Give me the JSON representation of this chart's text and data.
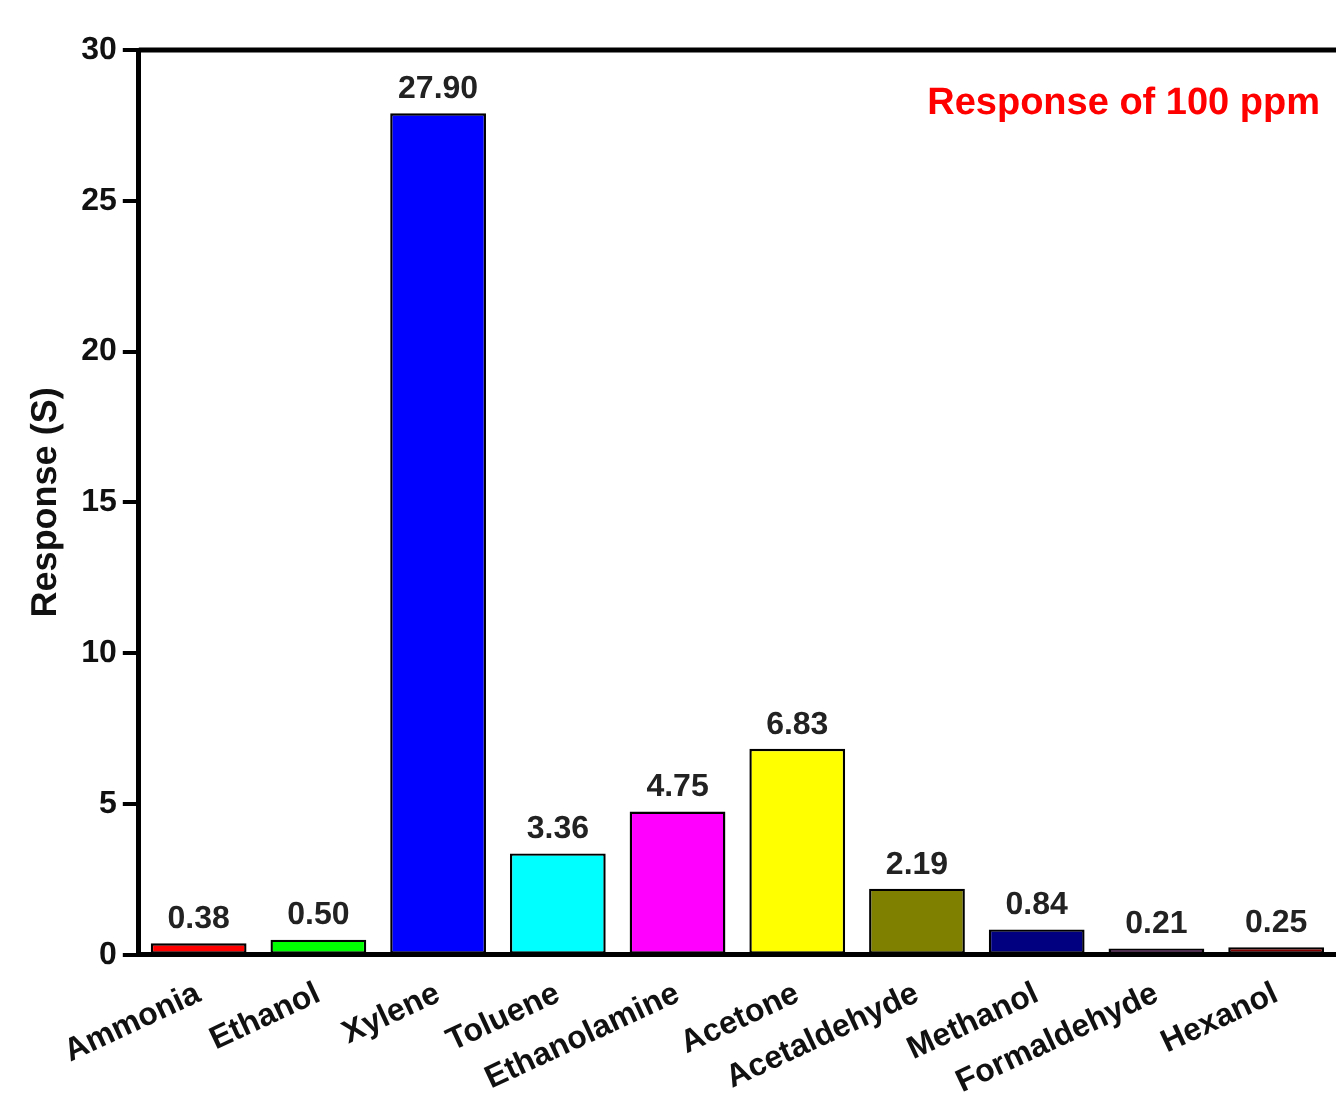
{
  "chart_data": {
    "type": "bar",
    "ylabel": "Response (S)",
    "annotations": [
      "Response of 100 ppm"
    ],
    "categories": [
      "Ammonia",
      "Ethanol",
      "Xylene",
      "Toluene",
      "Ethanolamine",
      "Acetone",
      "Acetaldehyde",
      "Methanol",
      "Formaldehyde",
      "Hexanol"
    ],
    "values": [
      0.38,
      0.5,
      27.9,
      3.36,
      4.75,
      6.83,
      2.19,
      0.84,
      0.21,
      0.25
    ],
    "value_labels": [
      "0.38",
      "0.50",
      "27.90",
      "3.36",
      "4.75",
      "6.83",
      "2.19",
      "0.84",
      "0.21",
      "0.25"
    ],
    "colors": [
      "#ff0000",
      "#00ff00",
      "#0000ff",
      "#00ffff",
      "#ff00ff",
      "#ffff00",
      "#808000",
      "#000080",
      "#800080",
      "#800000"
    ],
    "ylim": [
      0,
      30
    ],
    "yticks": [
      0,
      5,
      10,
      15,
      20,
      25,
      30
    ],
    "grid": false,
    "legend": false
  }
}
